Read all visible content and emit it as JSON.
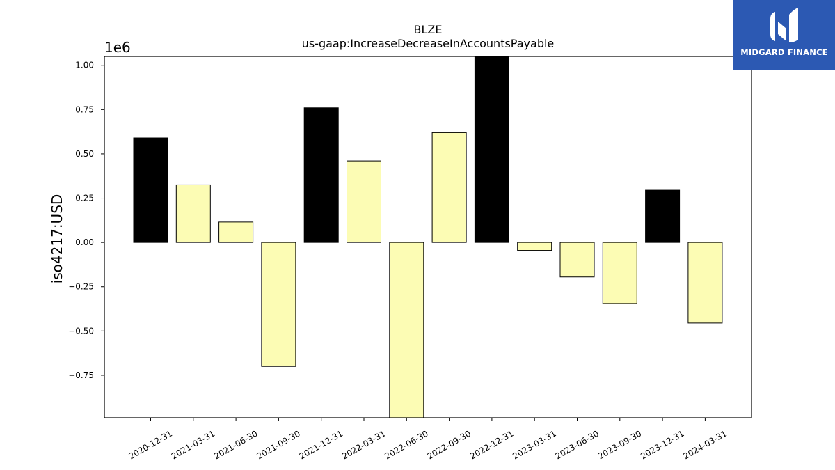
{
  "chart_data": {
    "type": "bar",
    "title": "BLZE",
    "subtitle": "us-gaap:IncreaseDecreaseInAccountsPayable",
    "ylabel": "iso4217:USD",
    "xlabel": "",
    "y_scale_label": "1e6",
    "categories": [
      "2020-12-31",
      "2021-03-31",
      "2021-06-30",
      "2021-09-30",
      "2021-12-31",
      "2022-03-31",
      "2022-06-30",
      "2022-09-30",
      "2022-12-31",
      "2023-03-31",
      "2023-06-30",
      "2023-09-30",
      "2023-12-31",
      "2024-03-31"
    ],
    "values": [
      590000,
      325000,
      115000,
      -700000,
      760000,
      460000,
      -990000,
      620000,
      1050000,
      -45000,
      -195000,
      -345000,
      295000,
      -455000
    ],
    "fiscal_year_end": [
      true,
      false,
      false,
      false,
      true,
      false,
      false,
      false,
      true,
      false,
      false,
      false,
      true,
      false
    ],
    "ylim": [
      -0.99,
      1.05
    ],
    "yticks": [
      -0.75,
      -0.5,
      -0.25,
      0.0,
      0.25,
      0.5,
      0.75,
      1.0
    ],
    "ytick_labels": [
      "−0.75",
      "−0.50",
      "−0.25",
      "0.00",
      "0.25",
      "0.50",
      "0.75",
      "1.00"
    ],
    "colors": {
      "year_end": "#000000",
      "quarter": "#fcfcb4",
      "edge": "#000000"
    },
    "grid": false,
    "legend": "none"
  },
  "logo": {
    "text": "MIDGARD FINANCE",
    "background": "#2c59b3",
    "icon": "midgard-logo-icon"
  }
}
